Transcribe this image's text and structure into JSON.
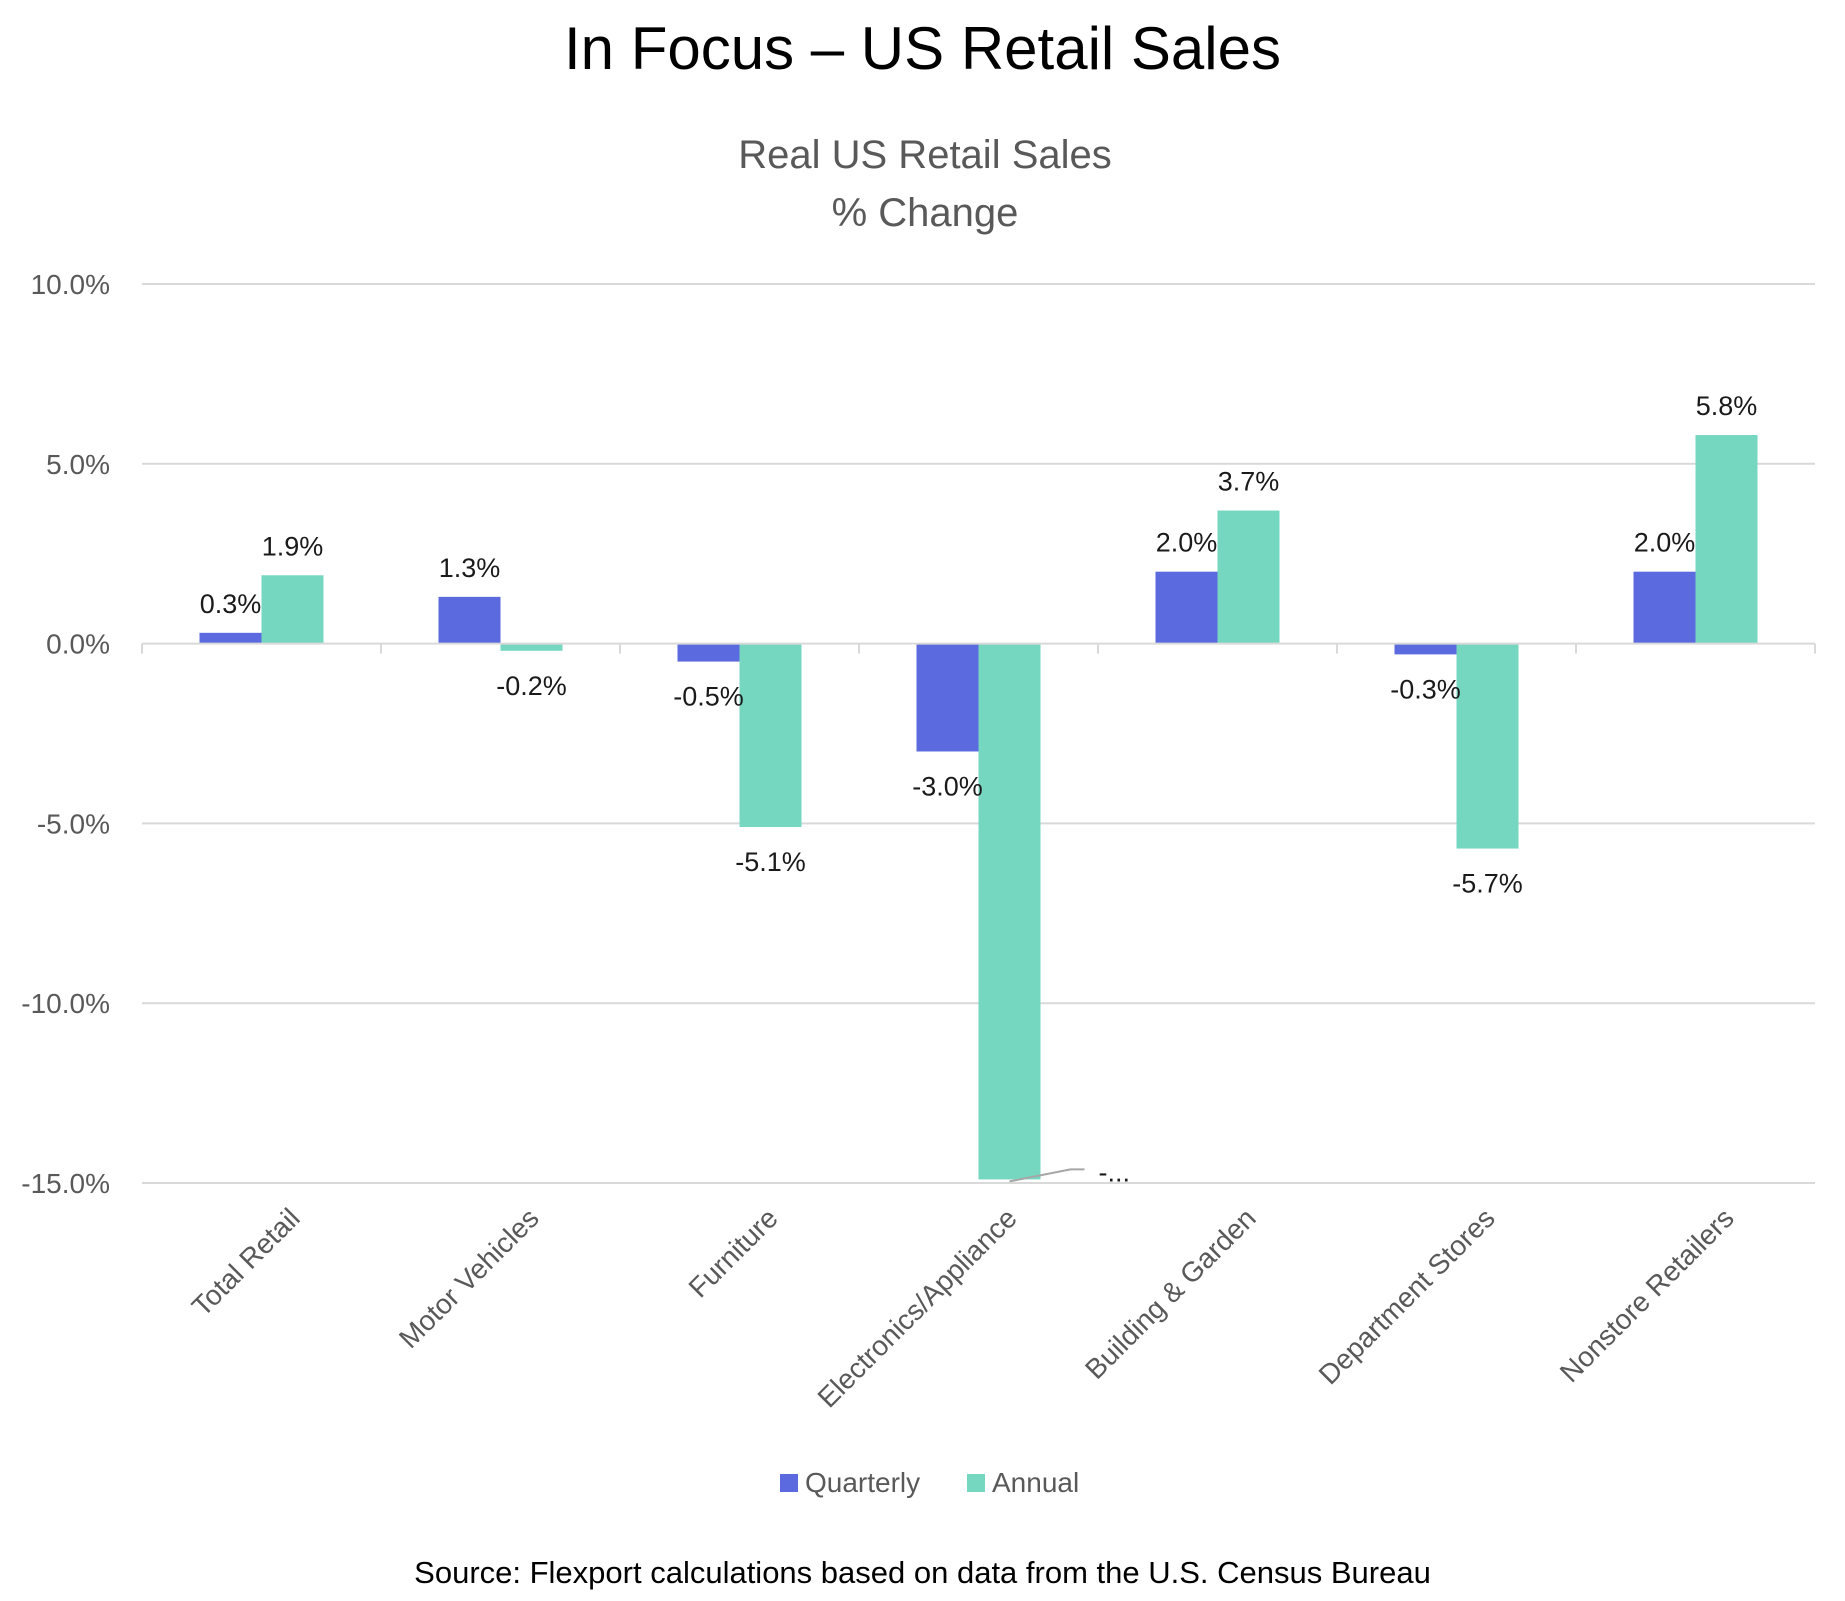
{
  "page": {
    "title": "In Focus – US Retail Sales",
    "source": "Source: Flexport calculations based on data from the U.S. Census Bureau"
  },
  "chart_data": {
    "type": "bar",
    "title": "Real US Retail Sales",
    "subtitle": "% Change",
    "xlabel": "",
    "ylabel": "",
    "ylim": [
      -15,
      10
    ],
    "yticks": [
      10,
      5,
      0,
      -5,
      -10,
      -15
    ],
    "ytick_labels": [
      "10.0%",
      "5.0%",
      "0.0%",
      "-5.0%",
      "-10.0%",
      "-15.0%"
    ],
    "grid": true,
    "legend_position": "bottom",
    "categories": [
      "Total Retail",
      "Motor Vehicles",
      "Furniture",
      "Electronics/Appliance",
      "Building & Garden",
      "Department Stores",
      "Nonstore Retailers"
    ],
    "series": [
      {
        "name": "Quarterly",
        "color": "#5b6adf",
        "values": [
          0.3,
          1.3,
          -0.5,
          -3.0,
          2.0,
          -0.3,
          2.0
        ],
        "labels": [
          "0.3%",
          "1.3%",
          "-0.5%",
          "-3.0%",
          "2.0%",
          "-0.3%",
          "2.0%"
        ]
      },
      {
        "name": "Annual",
        "color": "#76d7c0",
        "values": [
          1.9,
          -0.2,
          -5.1,
          -14.9,
          3.7,
          -5.7,
          5.8
        ],
        "labels": [
          "1.9%",
          "-0.2%",
          "-5.1%",
          "-...",
          "3.7%",
          "-5.7%",
          "5.8%"
        ]
      }
    ]
  }
}
